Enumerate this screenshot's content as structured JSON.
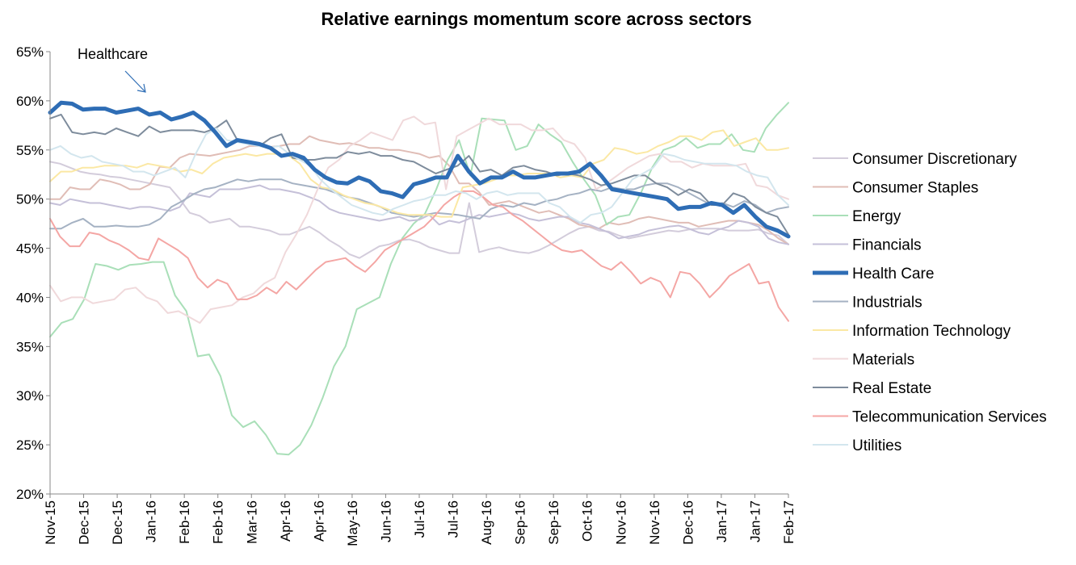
{
  "chart_data": {
    "type": "line",
    "title": "Relative earnings momentum  score across sectors",
    "xlabel": "",
    "ylabel": "",
    "ylim": [
      0.2,
      0.65
    ],
    "y_ticks": [
      0.2,
      0.25,
      0.3,
      0.35,
      0.4,
      0.45,
      0.5,
      0.55,
      0.6,
      0.65
    ],
    "y_tick_labels": [
      "20%",
      "25%",
      "30%",
      "35%",
      "40%",
      "45%",
      "50%",
      "55%",
      "60%",
      "65%"
    ],
    "x_tick_labels": [
      "Nov-15",
      "Dec-15",
      "Dec-15",
      "Jan-16",
      "Feb-16",
      "Feb-16",
      "Mar-16",
      "Apr-16",
      "Apr-16",
      "May-16",
      "Jun-16",
      "Jul-16",
      "Jul-16",
      "Aug-16",
      "Sep-16",
      "Sep-16",
      "Oct-16",
      "Nov-16",
      "Nov-16",
      "Dec-16",
      "Jan-17",
      "Jan-17",
      "Feb-17"
    ],
    "grid": false,
    "legend_position": "right",
    "annotation": {
      "text": "Healthcare",
      "target_series": "Health Care"
    },
    "series": [
      {
        "name": "Consumer Discretionary",
        "color": "#d3ccdb",
        "width": 2,
        "values": [
          53.8,
          53.6,
          53.2,
          52.8,
          52.6,
          52.5,
          52.3,
          52.2,
          52.0,
          51.8,
          51.6,
          51.4,
          51.2,
          50.0,
          48.6,
          48.3,
          47.6,
          47.8,
          48.0,
          47.2,
          47.2,
          47.0,
          46.8,
          46.4,
          46.4,
          46.8,
          47.2,
          46.6,
          45.8,
          45.2,
          44.4,
          44.0,
          44.6,
          45.2,
          45.4,
          45.8,
          45.9,
          45.6,
          45.1,
          44.8,
          44.5,
          44.5,
          49.6,
          44.6,
          44.9,
          45.1,
          44.8,
          44.6,
          44.5,
          44.8,
          45.3,
          45.9,
          46.5,
          47.0,
          47.2,
          46.8,
          46.7,
          46.3,
          46.0,
          46.2,
          46.4,
          46.6,
          46.8,
          46.7,
          46.9,
          47.0,
          47.0,
          47.0,
          46.8,
          46.8,
          46.8,
          46.9,
          46.5,
          46.3,
          45.4
        ]
      },
      {
        "name": "Consumer Staples",
        "color": "#e0bdb6",
        "width": 2,
        "values": [
          50.0,
          50.0,
          51.2,
          51.0,
          51.0,
          52.0,
          51.8,
          51.5,
          51.0,
          51.0,
          51.5,
          53.3,
          53.2,
          54.2,
          54.6,
          54.5,
          54.4,
          54.6,
          54.8,
          55.0,
          55.4,
          55.4,
          55.3,
          55.4,
          55.6,
          55.6,
          56.4,
          56.0,
          55.8,
          55.6,
          55.7,
          55.5,
          55.2,
          55.2,
          55.0,
          55.0,
          54.8,
          54.6,
          54.2,
          54.4,
          53.4,
          51.6,
          51.6,
          50.7,
          49.4,
          49.6,
          49.8,
          49.4,
          49.0,
          48.6,
          48.8,
          48.4,
          48.0,
          47.4,
          47.2,
          47.0,
          47.6,
          47.4,
          47.6,
          48.0,
          48.2,
          48.0,
          47.8,
          47.6,
          47.6,
          47.2,
          47.4,
          47.6,
          47.8,
          47.8,
          47.6,
          47.4,
          46.8,
          46.0,
          45.4
        ]
      },
      {
        "name": "Energy",
        "color": "#a9dfb8",
        "width": 2,
        "values": [
          36.0,
          37.4,
          37.8,
          39.8,
          43.4,
          43.2,
          42.8,
          43.3,
          43.4,
          43.6,
          43.6,
          40.2,
          38.6,
          34.0,
          34.2,
          32.0,
          28.0,
          26.8,
          27.4,
          26.0,
          24.1,
          24.0,
          25.0,
          27.0,
          29.8,
          33.0,
          35.0,
          38.8,
          39.4,
          40.0,
          43.4,
          46.0,
          47.5,
          48.5,
          51.0,
          54.0,
          56.0,
          52.4,
          58.2,
          58.1,
          58.0,
          55.0,
          55.4,
          57.6,
          56.6,
          55.8,
          53.8,
          52.0,
          50.4,
          47.4,
          48.2,
          48.4,
          50.6,
          53.2,
          55.0,
          55.4,
          56.2,
          55.2,
          55.6,
          55.6,
          56.6,
          55.0,
          54.8,
          57.2,
          58.6,
          59.8
        ]
      },
      {
        "name": "Financials",
        "color": "#c5c0d8",
        "width": 2,
        "values": [
          49.6,
          49.4,
          50.0,
          49.8,
          49.6,
          49.6,
          49.4,
          49.2,
          49.0,
          49.2,
          49.2,
          49.0,
          48.8,
          49.2,
          50.6,
          50.4,
          50.2,
          51.0,
          51.0,
          51.0,
          51.2,
          51.4,
          51.0,
          51.0,
          50.8,
          50.6,
          50.2,
          49.8,
          49.0,
          48.6,
          48.4,
          48.2,
          48.0,
          47.8,
          48.0,
          48.2,
          47.8,
          47.9,
          48.4,
          47.4,
          47.8,
          47.6,
          48.0,
          48.4,
          48.2,
          48.4,
          48.6,
          48.4,
          48.0,
          47.8,
          48.0,
          48.2,
          48.2,
          47.6,
          47.4,
          47.0,
          46.6,
          46.0,
          46.2,
          46.4,
          46.8,
          47.0,
          47.2,
          47.3,
          47.0,
          46.6,
          46.4,
          46.9,
          47.2,
          47.8,
          47.6,
          47.2,
          46.0,
          45.6,
          45.4
        ]
      },
      {
        "name": "Health Care",
        "color": "#2e6db5",
        "width": 5,
        "values": [
          58.8,
          59.8,
          59.7,
          59.1,
          59.2,
          59.2,
          58.8,
          59.0,
          59.2,
          58.6,
          58.8,
          58.1,
          58.4,
          58.8,
          58.0,
          56.8,
          55.4,
          56.0,
          55.8,
          55.6,
          55.2,
          54.4,
          54.6,
          54.2,
          53.0,
          52.2,
          51.7,
          51.6,
          52.2,
          51.8,
          50.8,
          50.6,
          50.2,
          51.5,
          51.8,
          52.2,
          52.2,
          54.4,
          52.8,
          51.6,
          52.2,
          52.2,
          52.8,
          52.2,
          52.2,
          52.4,
          52.6,
          52.6,
          52.8,
          53.6,
          52.4,
          51.0,
          50.8,
          50.6,
          50.4,
          50.2,
          50.0,
          49.0,
          49.2,
          49.2,
          49.6,
          49.4,
          48.6,
          49.4,
          48.2,
          47.2,
          46.8,
          46.2
        ]
      },
      {
        "name": "Industrials",
        "color": "#a5b2c3",
        "width": 2,
        "values": [
          47.0,
          47.0,
          47.6,
          48.0,
          47.2,
          47.2,
          47.3,
          47.2,
          47.2,
          47.4,
          48.0,
          49.2,
          49.8,
          50.5,
          51.0,
          51.2,
          51.6,
          52.0,
          51.8,
          52.0,
          52.0,
          52.0,
          51.6,
          51.4,
          51.2,
          51.0,
          50.6,
          50.2,
          50.0,
          49.6,
          49.2,
          48.6,
          48.4,
          48.2,
          48.4,
          48.6,
          48.5,
          48.4,
          48.2,
          48.0,
          49.0,
          49.4,
          49.2,
          49.6,
          49.4,
          49.8,
          50.0,
          50.4,
          50.6,
          51.0,
          50.8,
          51.2,
          51.0,
          51.0,
          51.4,
          51.6,
          51.6,
          51.2,
          50.6,
          50.0,
          49.4,
          49.6,
          49.2,
          49.8,
          49.4,
          48.6,
          49.0,
          49.2
        ]
      },
      {
        "name": "Information Technology",
        "color": "#fbe8a4",
        "width": 2,
        "values": [
          51.8,
          52.8,
          52.8,
          53.2,
          53.2,
          53.4,
          53.4,
          53.4,
          53.2,
          53.6,
          53.4,
          53.2,
          52.8,
          53.0,
          52.6,
          53.6,
          54.2,
          54.4,
          54.6,
          54.4,
          54.6,
          54.6,
          54.4,
          53.6,
          52.0,
          51.2,
          51.0,
          50.4,
          50.0,
          49.6,
          49.4,
          49.0,
          48.6,
          48.4,
          48.4,
          48.4,
          48.2,
          48.2,
          51.2,
          51.4,
          51.6,
          52.0,
          52.4,
          52.4,
          52.6,
          52.6,
          52.6,
          52.2,
          52.4,
          52.2,
          53.6,
          54.0,
          55.2,
          55.0,
          54.6,
          54.8,
          55.4,
          55.8,
          56.4,
          56.4,
          56.0,
          56.8,
          57.0,
          55.4,
          55.8,
          56.2,
          55.0,
          55.0,
          55.2
        ]
      },
      {
        "name": "Materials",
        "color": "#f0d9db",
        "width": 2,
        "values": [
          41.2,
          39.6,
          40.0,
          40.0,
          39.4,
          39.6,
          39.8,
          40.8,
          41.0,
          40.0,
          39.6,
          38.4,
          38.6,
          38.0,
          37.4,
          38.8,
          39.0,
          39.2,
          40.0,
          40.4,
          41.4,
          42.0,
          44.6,
          46.4,
          48.4,
          51.0,
          53.2,
          54.0,
          55.4,
          56.0,
          56.8,
          56.4,
          56.0,
          58.0,
          58.4,
          57.6,
          57.8,
          51.0,
          56.4,
          57.0,
          57.6,
          58.2,
          57.6,
          57.6,
          57.6,
          57.0,
          57.0,
          57.2,
          56.0,
          55.6,
          54.2,
          51.0,
          51.6,
          52.4,
          53.2,
          53.8,
          54.4,
          54.6,
          53.8,
          53.8,
          53.2,
          53.6,
          53.4,
          53.4,
          53.4,
          53.6,
          51.4,
          51.2,
          50.4,
          50.0
        ]
      },
      {
        "name": "Real Estate",
        "color": "#7e8c9c",
        "width": 2,
        "values": [
          58.2,
          58.6,
          56.8,
          56.6,
          56.8,
          56.6,
          57.2,
          56.8,
          56.4,
          57.4,
          56.8,
          57.0,
          57.0,
          57.0,
          56.8,
          57.2,
          58.0,
          56.0,
          55.6,
          55.4,
          56.2,
          56.6,
          54.2,
          54.0,
          54.0,
          54.2,
          54.2,
          54.8,
          54.6,
          54.8,
          54.4,
          54.4,
          54.0,
          53.8,
          53.2,
          52.6,
          53.0,
          53.4,
          54.4,
          52.8,
          53.0,
          52.4,
          53.2,
          53.4,
          53.0,
          52.8,
          52.4,
          52.6,
          52.4,
          52.0,
          51.4,
          51.6,
          52.0,
          52.4,
          52.4,
          51.6,
          51.2,
          50.4,
          51.0,
          50.6,
          49.4,
          49.4,
          50.6,
          50.2,
          49.2,
          48.6,
          48.2,
          46.4
        ]
      },
      {
        "name": "Telecommunication Services",
        "color": "#f4a6a4",
        "width": 2,
        "values": [
          48.0,
          46.2,
          45.2,
          45.2,
          46.6,
          46.4,
          45.8,
          45.4,
          44.8,
          44.0,
          43.8,
          46.0,
          45.4,
          44.8,
          44.0,
          42.0,
          41.0,
          41.8,
          41.4,
          39.8,
          39.8,
          40.2,
          41.0,
          40.4,
          41.6,
          40.8,
          41.8,
          42.8,
          43.6,
          43.8,
          44.0,
          43.2,
          42.6,
          43.6,
          44.8,
          45.4,
          46.0,
          46.6,
          47.2,
          48.2,
          49.4,
          50.2,
          50.8,
          50.8,
          50.2,
          49.4,
          49.2,
          48.4,
          47.8,
          47.0,
          46.2,
          45.4,
          44.8,
          44.6,
          44.8,
          44.0,
          43.2,
          42.8,
          43.6,
          42.6,
          41.4,
          42.0,
          41.6,
          40.0,
          42.6,
          42.4,
          41.4,
          40.0,
          41.0,
          42.2,
          42.8,
          43.4,
          41.4,
          41.6,
          39.0,
          37.6
        ]
      },
      {
        "name": "Utilities",
        "color": "#d3e6ee",
        "width": 2,
        "values": [
          55.0,
          55.4,
          54.6,
          54.2,
          54.4,
          53.8,
          53.6,
          53.4,
          52.8,
          52.8,
          52.4,
          52.8,
          53.2,
          52.2,
          54.6,
          56.6,
          57.2,
          56.0,
          55.8,
          55.6,
          55.4,
          55.2,
          55.4,
          54.6,
          54.0,
          53.4,
          52.0,
          51.0,
          50.2,
          49.4,
          49.0,
          48.6,
          48.4,
          49.0,
          49.4,
          49.8,
          50.0,
          50.4,
          50.4,
          50.8,
          50.6,
          50.0,
          50.6,
          50.8,
          50.4,
          50.6,
          50.6,
          50.6,
          49.6,
          49.2,
          48.2,
          47.6,
          48.4,
          48.6,
          49.2,
          50.6,
          52.0,
          52.6,
          53.2,
          54.6,
          54.4,
          54.0,
          53.8,
          53.6,
          53.6,
          53.6,
          53.4,
          52.8,
          52.4,
          52.2,
          50.4,
          49.4
        ]
      }
    ]
  }
}
